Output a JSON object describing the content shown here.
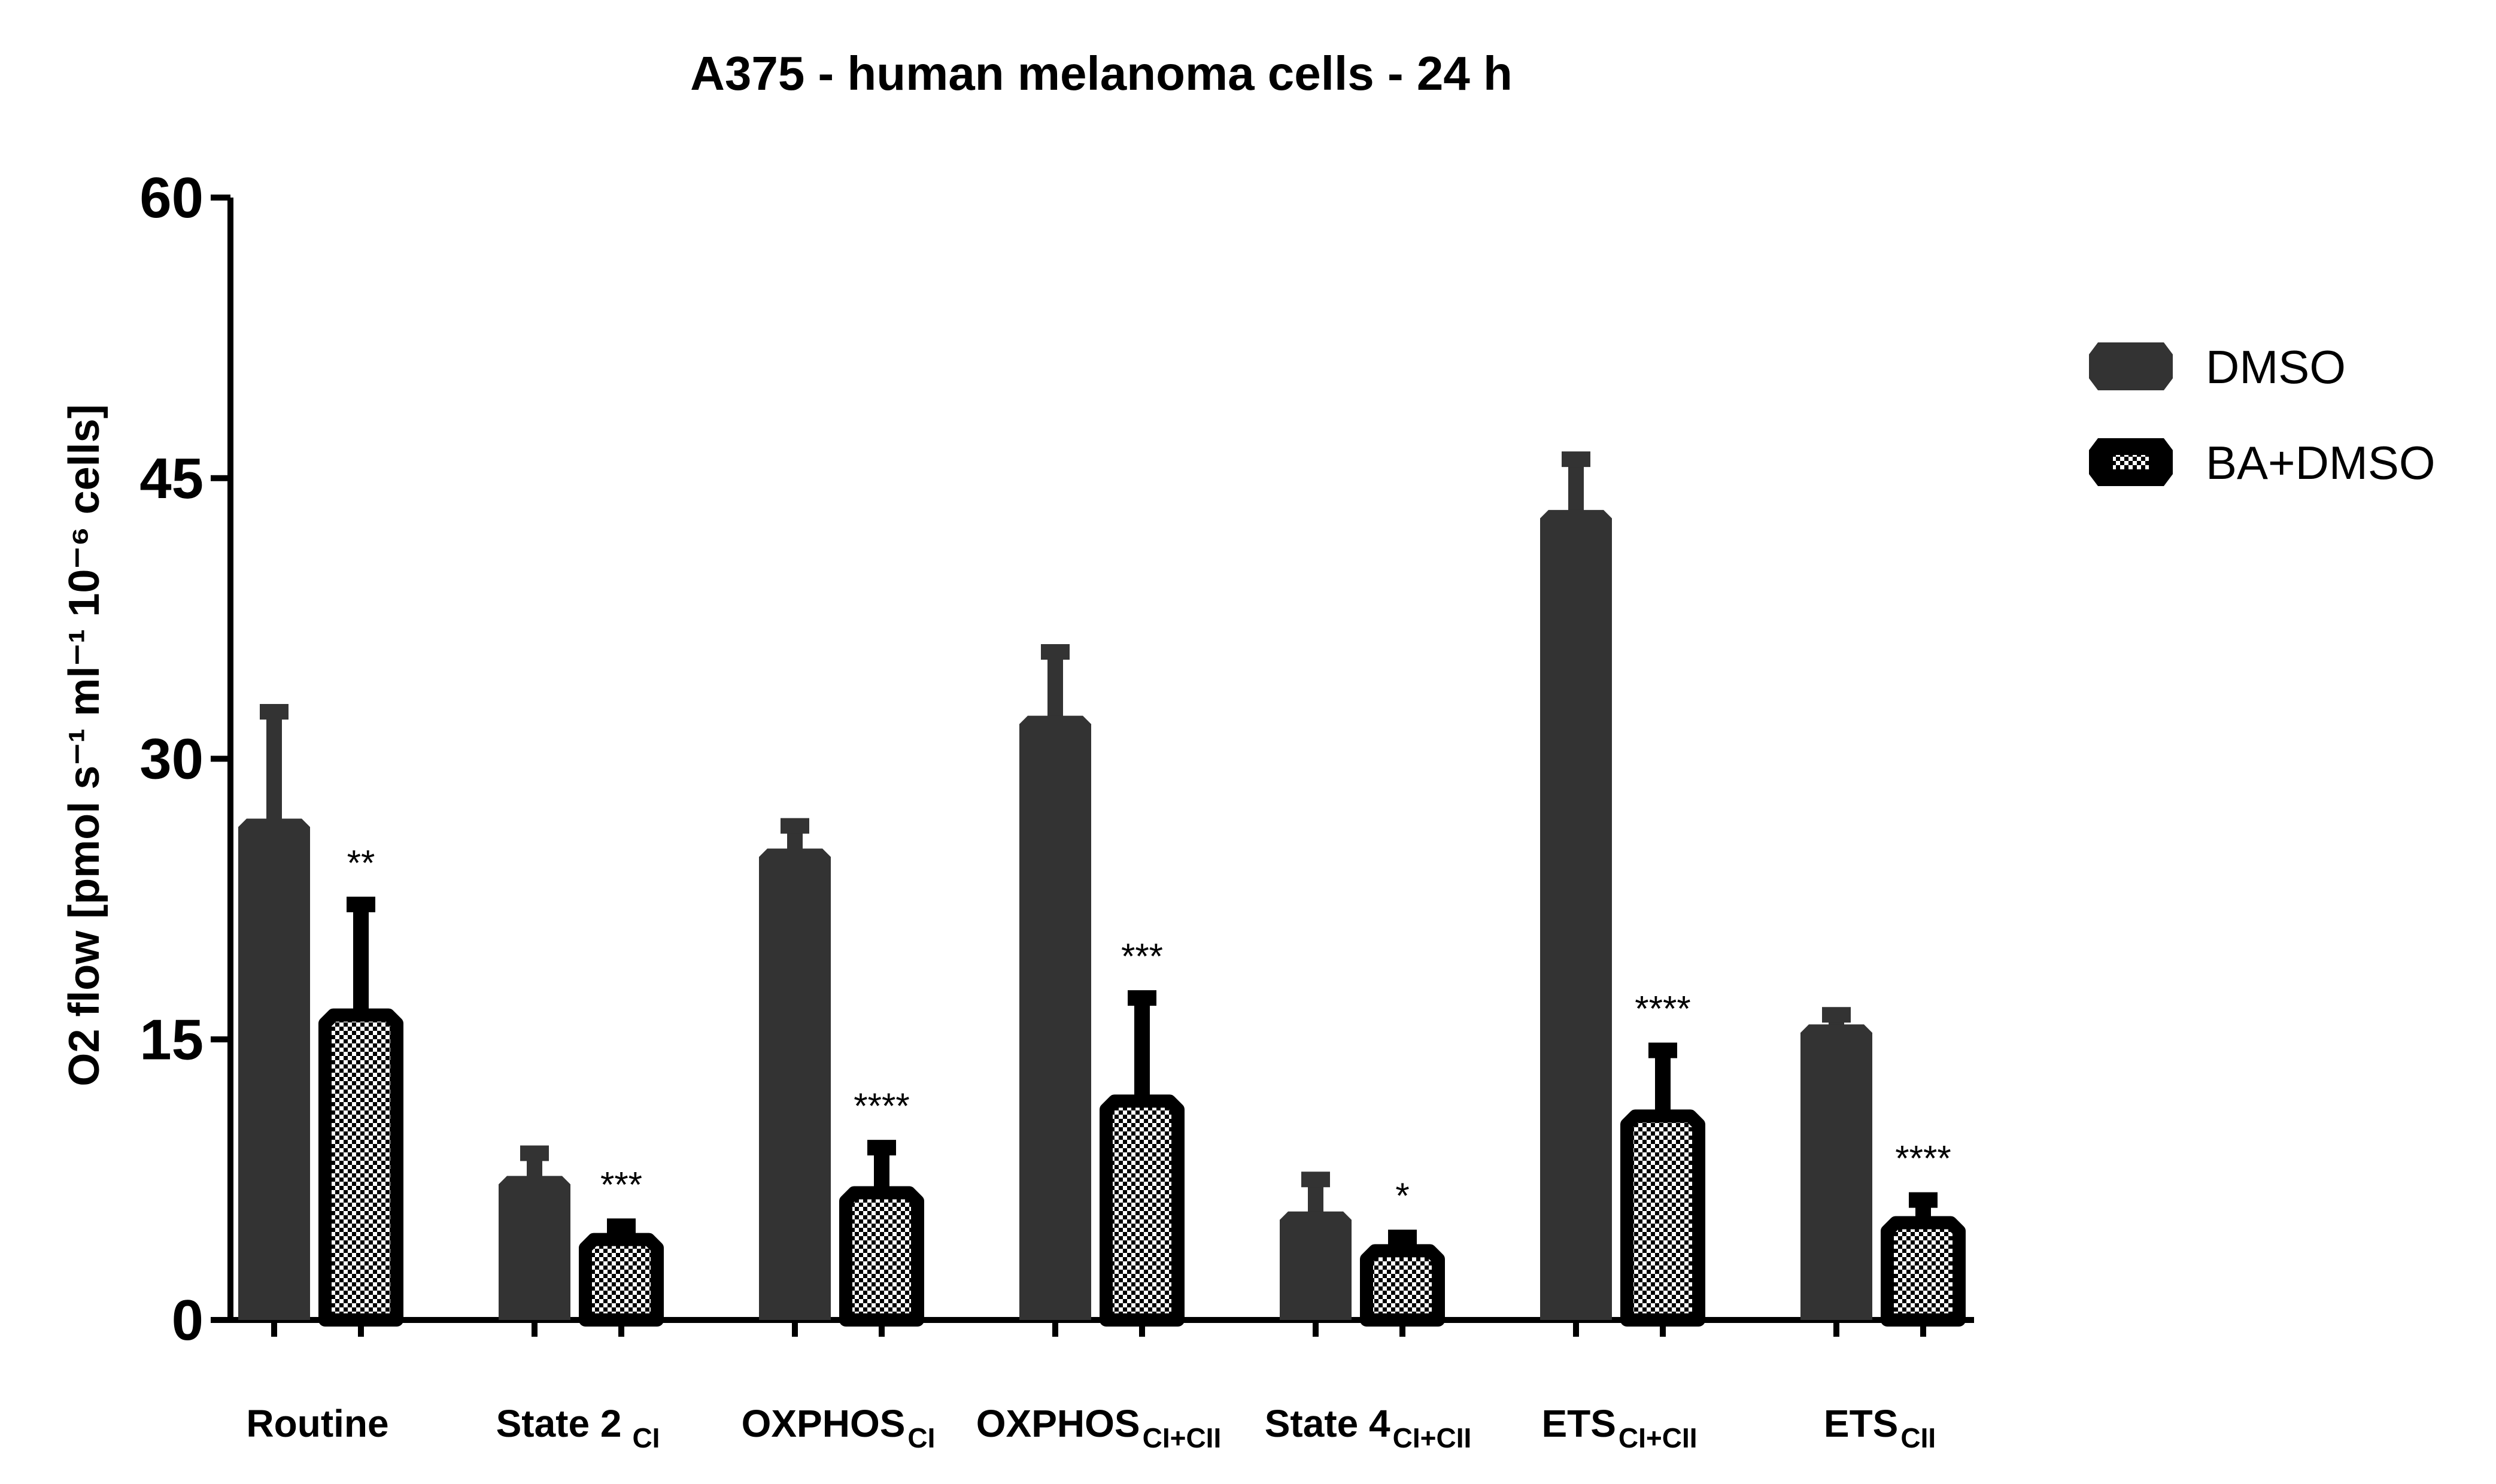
{
  "chart_data": {
    "type": "bar",
    "title": "A375 - human melanoma cells - 24 h",
    "ylabel": "O2 flow [pmol s⁻¹ ml⁻¹ 10⁻⁶ cells]",
    "xlabel": "",
    "ylim": [
      0,
      60
    ],
    "yticks": [
      0,
      15,
      30,
      45,
      60
    ],
    "categories": [
      {
        "main": "Routine",
        "sub": ""
      },
      {
        "main": "State 2",
        "sub": "CI"
      },
      {
        "main": "OXPHOS",
        "sub": "CI"
      },
      {
        "main": "OXPHOS",
        "sub": "CI+CII"
      },
      {
        "main": "State 4",
        "sub": "CI+CII"
      },
      {
        "main": "ETS",
        "sub": "CI+CII"
      },
      {
        "main": "ETS",
        "sub": "CII"
      }
    ],
    "series": [
      {
        "name": "DMSO",
        "color": "#333333",
        "pattern": "solid",
        "values": [
          26.8,
          7.7,
          25.2,
          32.3,
          5.8,
          43.3,
          15.8
        ],
        "errors": [
          6.0,
          1.5,
          1.5,
          3.7,
          2.0,
          3.0,
          0.8
        ],
        "sig": [
          "",
          "",
          "",
          "",
          "",
          "",
          ""
        ]
      },
      {
        "name": "BA+DMSO",
        "color": "#000000",
        "pattern": "checker",
        "values": [
          16.3,
          4.3,
          6.8,
          11.7,
          3.7,
          10.9,
          5.2
        ],
        "errors": [
          6.2,
          1.0,
          2.7,
          5.8,
          1.0,
          3.8,
          1.5
        ],
        "sig": [
          "**",
          "***",
          "****",
          "***",
          "*",
          "****",
          "****"
        ]
      }
    ],
    "legend_position": "top-right"
  }
}
